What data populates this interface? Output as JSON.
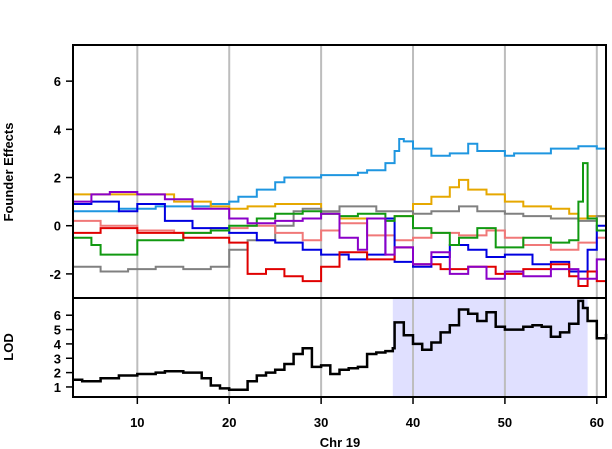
{
  "chart_data": [
    {
      "type": "line",
      "ylabel": "Founder Effects",
      "xlim": [
        3,
        61
      ],
      "ylim": [
        -3,
        7.5
      ],
      "yticks": [
        -2,
        0,
        2,
        4,
        6
      ],
      "grid_x": [
        10,
        20,
        30,
        40,
        50,
        60
      ],
      "grid": true,
      "series_colors": [
        "#1f96e0",
        "#e6a800",
        "#808080",
        "#f07878",
        "#0000e0",
        "#119911",
        "#e00000",
        "#8a00c8"
      ],
      "series": [
        {
          "color": "#1f96e0",
          "x": [
            3,
            8,
            12,
            15,
            18,
            20,
            21,
            23,
            25,
            26,
            30,
            34,
            35,
            37,
            38,
            38.5,
            39,
            40,
            42,
            44,
            46,
            47,
            50,
            51,
            52,
            55,
            58,
            60,
            61
          ],
          "y": [
            0.6,
            0.7,
            0.8,
            0.8,
            0.9,
            1.0,
            1.2,
            1.5,
            1.8,
            2.0,
            2.1,
            2.2,
            2.3,
            2.6,
            3.1,
            3.6,
            3.5,
            3.2,
            2.9,
            3.0,
            3.4,
            3.1,
            2.9,
            3.0,
            3.0,
            3.2,
            3.3,
            3.2,
            3.2
          ]
        },
        {
          "color": "#e6a800",
          "x": [
            3,
            6,
            10,
            14,
            18,
            20,
            22,
            25,
            26,
            30,
            32,
            34,
            38,
            40,
            42,
            44,
            45,
            46,
            48,
            50,
            52,
            55,
            57,
            58,
            59,
            60,
            61
          ],
          "y": [
            1.3,
            1.3,
            1.3,
            1.0,
            0.8,
            0.7,
            0.8,
            0.9,
            0.9,
            0.5,
            0.3,
            0.3,
            0.4,
            0.9,
            1.2,
            1.6,
            1.9,
            1.5,
            1.3,
            1.0,
            0.8,
            0.7,
            0.5,
            0.3,
            0.4,
            0.4,
            0.5
          ]
        },
        {
          "color": "#808080",
          "x": [
            3,
            6,
            9,
            12,
            15,
            18,
            20,
            22,
            25,
            27,
            28,
            30,
            32,
            34,
            36,
            38,
            40,
            42,
            45,
            47,
            50,
            52,
            55,
            58,
            60,
            61
          ],
          "y": [
            -1.7,
            -1.9,
            -1.8,
            -1.7,
            -1.8,
            -1.7,
            -1.0,
            -0.6,
            0.0,
            0.6,
            0.7,
            0.6,
            0.8,
            0.8,
            0.6,
            0.6,
            0.5,
            0.6,
            0.8,
            0.6,
            0.5,
            0.4,
            0.3,
            0.2,
            0.4,
            0.7
          ]
        },
        {
          "color": "#f07878",
          "x": [
            3,
            6,
            10,
            14,
            18,
            22,
            25,
            28,
            30,
            32,
            35,
            38,
            40,
            42,
            45,
            48,
            50,
            52,
            55,
            58,
            60,
            61
          ],
          "y": [
            0.2,
            0.0,
            -0.2,
            -0.3,
            -0.1,
            0.0,
            -0.3,
            -0.6,
            -0.2,
            0.1,
            -0.4,
            -0.6,
            -0.5,
            -0.3,
            -0.4,
            -0.2,
            -0.5,
            -0.8,
            -1.0,
            -0.7,
            -0.5,
            -0.4
          ]
        },
        {
          "color": "#0000e0",
          "x": [
            3,
            5,
            8,
            10,
            13,
            16,
            20,
            23,
            25,
            28,
            30,
            33,
            35,
            37,
            38,
            40,
            42,
            44,
            46,
            48,
            50,
            53,
            55,
            57,
            59,
            60,
            61
          ],
          "y": [
            0.9,
            1.0,
            0.6,
            0.9,
            0.2,
            -0.1,
            -0.3,
            -0.6,
            -0.7,
            -1.0,
            -1.2,
            -1.4,
            -1.2,
            0.3,
            -1.5,
            -1.7,
            -1.3,
            -0.8,
            -1.0,
            -1.3,
            -1.2,
            -1.6,
            -1.5,
            -1.9,
            -1.0,
            0.0,
            0.1
          ]
        },
        {
          "color": "#119911",
          "x": [
            3,
            5,
            6,
            10,
            15,
            18,
            20,
            23,
            25,
            28,
            30,
            32,
            34,
            37,
            38,
            40,
            42,
            44,
            45,
            47,
            49,
            52,
            55,
            57,
            58,
            58.5,
            59,
            60,
            61
          ],
          "y": [
            -0.5,
            -0.8,
            -1.2,
            -0.6,
            -0.3,
            -0.2,
            0.0,
            0.3,
            0.5,
            0.6,
            0.5,
            0.4,
            0.5,
            0.2,
            0.4,
            -0.1,
            -0.3,
            -0.8,
            -0.5,
            -0.1,
            -0.9,
            -0.5,
            -0.7,
            -0.6,
            1.0,
            2.6,
            0.3,
            -0.2,
            0.4
          ]
        },
        {
          "color": "#e00000",
          "x": [
            3,
            6,
            10,
            15,
            20,
            22,
            24,
            26,
            28,
            30,
            32,
            35,
            38,
            40,
            43,
            46,
            49,
            52,
            55,
            57,
            58,
            59,
            60,
            61
          ],
          "y": [
            -0.3,
            -0.1,
            -0.3,
            -0.5,
            -0.7,
            -2.0,
            -1.8,
            -2.1,
            -2.3,
            -1.7,
            -1.1,
            -1.4,
            -0.9,
            -1.6,
            -1.8,
            -1.7,
            -2.0,
            -1.8,
            -1.6,
            -2.1,
            -2.5,
            -1.9,
            -2.3,
            -2.6
          ]
        },
        {
          "color": "#8a00c8",
          "x": [
            3,
            5,
            7,
            10,
            13,
            16,
            20,
            22,
            25,
            28,
            30,
            32,
            34,
            35,
            37,
            38,
            40,
            42,
            44,
            46,
            48,
            50,
            52,
            55,
            58,
            60,
            61
          ],
          "y": [
            1.0,
            1.3,
            1.4,
            1.3,
            1.1,
            0.7,
            0.3,
            0.1,
            0.2,
            0.3,
            0.5,
            -0.5,
            -1.0,
            0.3,
            -1.2,
            -0.9,
            -1.6,
            -1.1,
            -2.0,
            -1.7,
            -2.2,
            -1.9,
            -2.1,
            -1.8,
            -2.2,
            -1.4,
            -0.8
          ]
        }
      ]
    },
    {
      "type": "line",
      "xlabel": "Chr 19",
      "ylabel": "LOD",
      "xlim": [
        3,
        61
      ],
      "ylim": [
        0.3,
        7.2
      ],
      "yticks": [
        1,
        2,
        3,
        4,
        5,
        6
      ],
      "xticks": [
        10,
        20,
        30,
        40,
        50,
        60
      ],
      "grid_x": [
        10,
        20,
        30,
        40,
        50,
        60
      ],
      "grid": true,
      "highlight_interval": [
        37.8,
        59
      ],
      "highlight_color": "#e0e0ff",
      "series": [
        {
          "color": "#000000",
          "x": [
            3,
            4,
            6,
            8,
            10,
            12,
            13,
            15,
            17,
            18,
            19,
            20,
            21,
            22,
            23,
            24,
            25,
            26,
            27,
            28,
            29,
            30,
            31,
            32,
            33,
            34,
            35,
            36,
            37,
            37.8,
            38,
            39,
            40,
            41,
            42,
            43,
            44,
            45,
            46,
            47,
            48,
            49,
            50,
            51,
            52,
            53,
            54,
            55,
            56,
            57,
            58,
            58.5,
            59,
            60,
            61
          ],
          "y": [
            1.5,
            1.4,
            1.6,
            1.8,
            1.9,
            2.0,
            2.1,
            2.0,
            1.6,
            1.1,
            0.9,
            0.8,
            0.8,
            1.4,
            1.8,
            2.0,
            2.2,
            2.6,
            3.3,
            3.7,
            2.4,
            2.5,
            1.9,
            2.2,
            2.3,
            2.4,
            3.3,
            3.4,
            3.5,
            3.7,
            5.5,
            4.6,
            4.0,
            3.6,
            4.1,
            4.8,
            5.3,
            6.4,
            6.1,
            5.6,
            6.2,
            5.2,
            5.0,
            5.0,
            5.2,
            5.3,
            5.2,
            4.5,
            4.8,
            5.4,
            7.0,
            6.5,
            5.6,
            4.4,
            4.7
          ]
        }
      ]
    }
  ]
}
